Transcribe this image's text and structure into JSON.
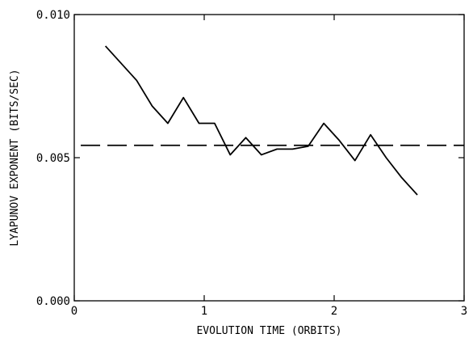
{
  "chart_data": {
    "type": "line",
    "title": "",
    "xlabel": "EVOLUTION TIME (ORBITS)",
    "ylabel": "LYAPUNOV EXPONENT (BITS/SEC)",
    "xlim": [
      0,
      3
    ],
    "ylim": [
      0,
      0.01
    ],
    "x_ticks": [
      0,
      1,
      2,
      3
    ],
    "x_tick_labels": [
      "0",
      "1",
      "2",
      "3"
    ],
    "y_ticks": [
      0,
      0.005,
      0.01
    ],
    "y_tick_labels": [
      "0.000",
      "0.005",
      "0.010"
    ],
    "grid": false,
    "series": [
      {
        "style": "solid",
        "color": "#000000",
        "x": [
          0.24,
          0.48,
          0.6,
          0.72,
          0.84,
          0.96,
          1.08,
          1.2,
          1.32,
          1.44,
          1.56,
          1.68,
          1.8,
          1.92,
          2.04,
          2.16,
          2.28,
          2.4,
          2.52,
          2.64
        ],
        "y": [
          0.0089,
          0.0077,
          0.0068,
          0.0062,
          0.0071,
          0.0062,
          0.0062,
          0.0051,
          0.0057,
          0.0051,
          0.0053,
          0.0053,
          0.0054,
          0.0062,
          0.0056,
          0.0049,
          0.0058,
          0.005,
          0.0043,
          0.0037
        ]
      },
      {
        "style": "dashed",
        "color": "#000000",
        "x": [
          0.05,
          3.0
        ],
        "y": [
          0.00543,
          0.00543
        ]
      }
    ]
  }
}
